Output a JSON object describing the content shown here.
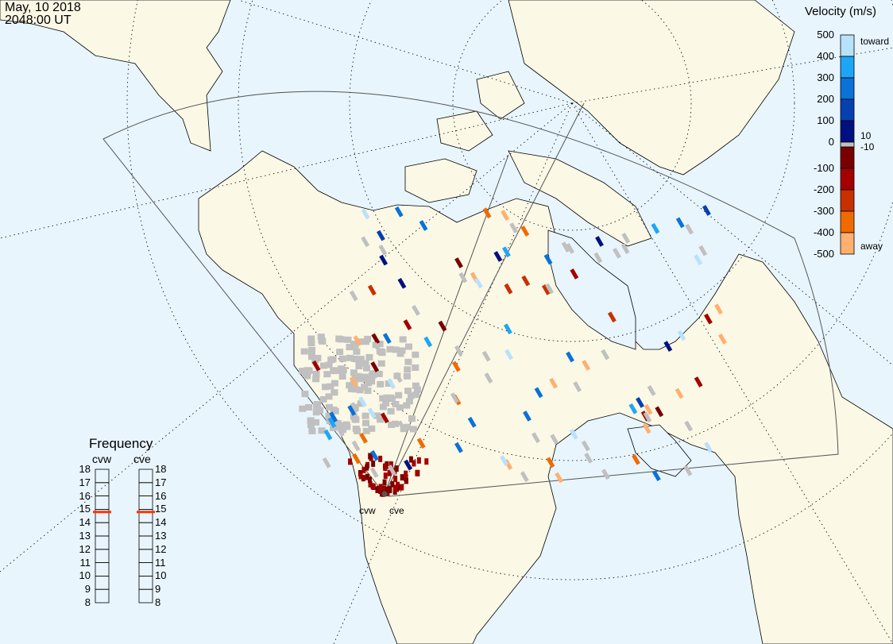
{
  "header": {
    "date": "May, 10 2018",
    "time": "2048:00 UT"
  },
  "colorbar": {
    "title": "Velocity (m/s)",
    "ticks": [
      "500",
      "400",
      "300",
      "200",
      "100",
      "0",
      "-100",
      "-200",
      "-300",
      "-400",
      "-500"
    ],
    "toward_label": "toward",
    "away_label": "away",
    "gs_upper": "10",
    "gs_lower": "-10",
    "colors": [
      "#b8e2fc",
      "#1ea6f6",
      "#0a72d8",
      "#0640b0",
      "#001080",
      "#7a0000",
      "#a40000",
      "#c83000",
      "#f06a00",
      "#ffb070"
    ],
    "ground_scatter_color": "#c0c0c0"
  },
  "frequency": {
    "title": "Frequency",
    "radars": [
      {
        "name": "cvw",
        "value_mhz": 14.8
      },
      {
        "name": "cve",
        "value_mhz": 14.8
      }
    ],
    "ticks": [
      "18",
      "17",
      "16",
      "15",
      "14",
      "13",
      "12",
      "11",
      "10",
      "9",
      "8"
    ],
    "range": [
      8,
      18
    ],
    "marker_color": "#ff3300"
  },
  "map": {
    "radar_labels": [
      "cvw",
      "cve"
    ],
    "ocean_color": "#e8f5fd",
    "land_color": "#fbf8e6"
  }
}
